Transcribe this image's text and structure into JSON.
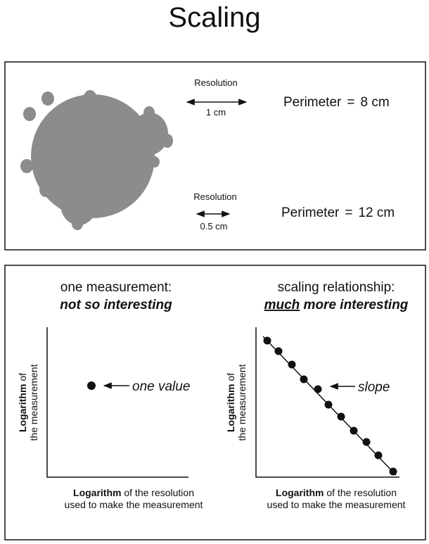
{
  "title": "Scaling",
  "top_panel": {
    "rows": [
      {
        "resolution_label": "Resolution",
        "resolution_value": "1 cm",
        "perimeter_label": "Perimeter",
        "equals": "=",
        "perimeter_value": "8 cm"
      },
      {
        "resolution_label": "Resolution",
        "resolution_value": "0.5 cm",
        "perimeter_label": "Perimeter",
        "equals": "=",
        "perimeter_value": "12 cm"
      }
    ]
  },
  "bottom_panel": {
    "left": {
      "heading": "one measurement:",
      "subheading": "not so interesting",
      "annotation": "one value",
      "y_label_bold": "Logarithm",
      "y_label_rest": "of",
      "y_label_line2": "the measurement",
      "x_label_bold": "Logarithm",
      "x_label_rest": "of the resolution",
      "x_label_line2": "used to make the measurement"
    },
    "right": {
      "heading": "scaling relationship:",
      "subheading_emphasis": "much",
      "subheading_rest": "more interesting",
      "annotation": "slope",
      "y_label_bold": "Logarithm",
      "y_label_rest": "of",
      "y_label_line2": "the measurement",
      "x_label_bold": "Logarithm",
      "x_label_rest": "of the resolution",
      "x_label_line2": "used to make the measurement"
    }
  }
}
